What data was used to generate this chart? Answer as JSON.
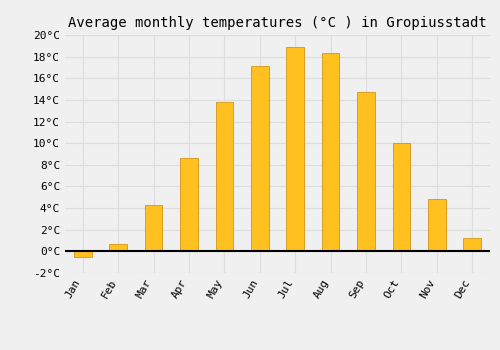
{
  "title": "Average monthly temperatures (°C ) in Gropiusstadt",
  "months": [
    "Jan",
    "Feb",
    "Mar",
    "Apr",
    "May",
    "Jun",
    "Jul",
    "Aug",
    "Sep",
    "Oct",
    "Nov",
    "Dec"
  ],
  "values": [
    -0.5,
    0.7,
    4.3,
    8.6,
    13.8,
    17.1,
    18.9,
    18.3,
    14.7,
    10.0,
    4.8,
    1.2
  ],
  "bar_color": "#FFC020",
  "bar_edge_color": "#CC8800",
  "ylim": [
    -2,
    20
  ],
  "yticks": [
    -2,
    0,
    2,
    4,
    6,
    8,
    10,
    12,
    14,
    16,
    18,
    20
  ],
  "ytick_labels": [
    "-2°C",
    "0°C",
    "2°C",
    "4°C",
    "6°C",
    "8°C",
    "10°C",
    "12°C",
    "14°C",
    "16°C",
    "18°C",
    "20°C"
  ],
  "grid_color": "#dddddd",
  "background_color": "#f0f0f0",
  "title_fontsize": 10,
  "tick_fontsize": 8,
  "bar_width": 0.5
}
